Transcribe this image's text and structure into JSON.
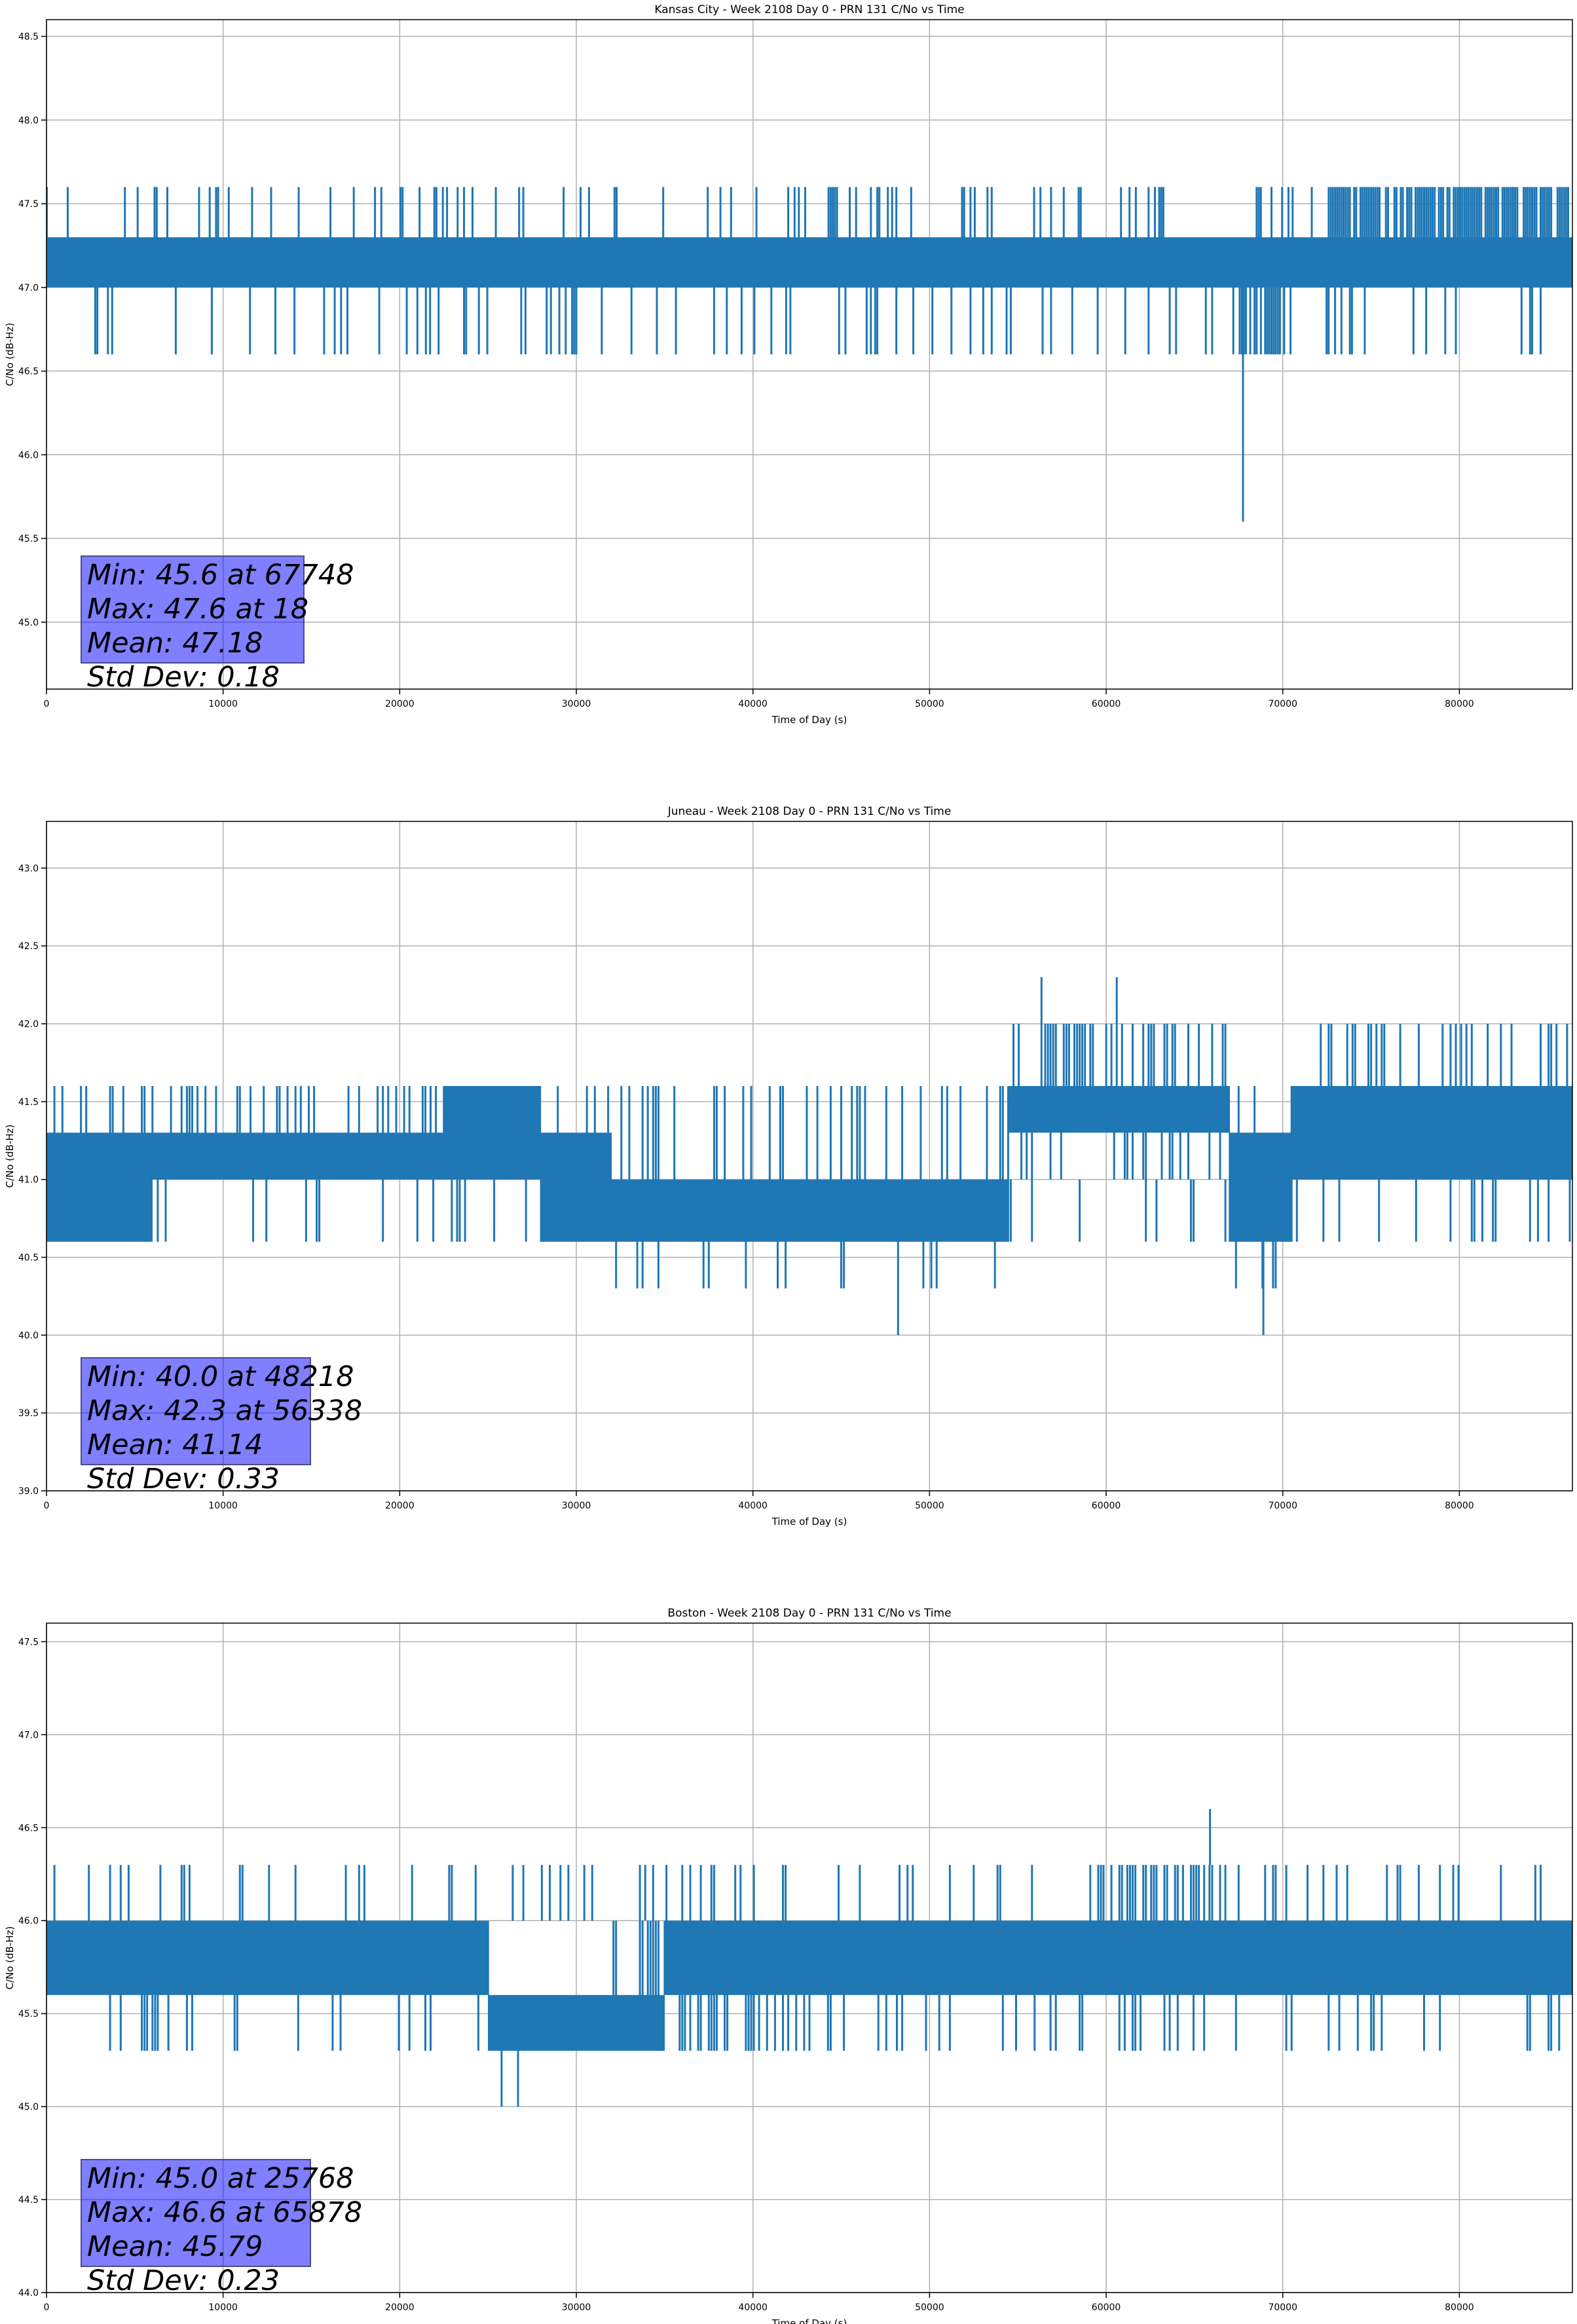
{
  "figure": {
    "colors": {
      "series": "#1f77b4",
      "stats_box": "#8080ff",
      "grid": "#b0b0b0",
      "axes": "#000000"
    }
  },
  "chart_data": [
    {
      "type": "line",
      "title": "Kansas City - Week 2108 Day 0 - PRN 131 C/No vs Time",
      "xlabel": "Time of Day (s)",
      "ylabel": "C/No (dB-Hz)",
      "xlim": [
        0,
        86400
      ],
      "ylim": [
        44.6,
        48.6
      ],
      "xticks": [
        0,
        10000,
        20000,
        30000,
        40000,
        50000,
        60000,
        70000,
        80000
      ],
      "yticks": [
        "45.0",
        "45.5",
        "46.0",
        "46.5",
        "47.0",
        "47.5",
        "48.0",
        "48.5"
      ],
      "grid": true,
      "series": [
        {
          "base": 47.0,
          "upper": 47.3,
          "high": 47.6,
          "low": 46.6,
          "min": 45.6,
          "min_at": 67748,
          "max": 47.6,
          "max_at": 18,
          "mean": 47.18,
          "std": 0.18
        }
      ],
      "stats": [
        "Min: 45.6 at 67748",
        "Max: 47.6 at 18",
        "Mean: 47.18",
        "Std Dev: 0.18"
      ]
    },
    {
      "type": "line",
      "title": "Juneau - Week 2108 Day 0 - PRN 131 C/No vs Time",
      "xlabel": "Time of Day (s)",
      "ylabel": "C/No (dB-Hz)",
      "xlim": [
        0,
        86400
      ],
      "ylim": [
        39.0,
        43.3
      ],
      "xticks": [
        0,
        10000,
        20000,
        30000,
        40000,
        50000,
        60000,
        70000,
        80000
      ],
      "yticks": [
        "39.0",
        "39.5",
        "40.0",
        "40.5",
        "41.0",
        "41.5",
        "42.0",
        "42.5",
        "43.0"
      ],
      "grid": true,
      "series": [
        {
          "min": 40.0,
          "min_at": 48218,
          "max": 42.3,
          "max_at": 56338,
          "mean": 41.14,
          "std": 0.33
        }
      ],
      "stats": [
        "Min: 40.0 at 48218",
        "Max: 42.3 at 56338",
        "Mean: 41.14",
        "Std Dev: 0.33"
      ]
    },
    {
      "type": "line",
      "title": "Boston - Week 2108 Day 0 - PRN 131 C/No vs Time",
      "xlabel": "Time of Day (s)",
      "ylabel": "C/No (dB-Hz)",
      "xlim": [
        0,
        86400
      ],
      "ylim": [
        44.0,
        47.6
      ],
      "xticks": [
        0,
        10000,
        20000,
        30000,
        40000,
        50000,
        60000,
        70000,
        80000
      ],
      "yticks": [
        "44.0",
        "44.5",
        "45.0",
        "45.5",
        "46.0",
        "46.5",
        "47.0",
        "47.5"
      ],
      "grid": true,
      "series": [
        {
          "min": 45.0,
          "min_at": 25768,
          "max": 46.6,
          "max_at": 65878,
          "mean": 45.79,
          "std": 0.23
        }
      ],
      "stats": [
        "Min: 45.0 at 25768",
        "Max: 46.6 at 65878",
        "Mean: 45.79",
        "Std Dev: 0.23"
      ]
    }
  ]
}
